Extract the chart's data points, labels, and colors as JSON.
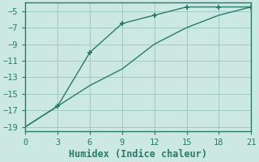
{
  "xlabel": "Humidex (Indice chaleur)",
  "bg_color": "#cbe8e3",
  "grid_color": "#a0ccc5",
  "line_color": "#2a7a6a",
  "line1_x": [
    0,
    3,
    6,
    9,
    12,
    15,
    18,
    21
  ],
  "line1_y": [
    -19.0,
    -16.5,
    -10.0,
    -6.5,
    -5.5,
    -4.5,
    -4.5,
    -4.5
  ],
  "line1_markers_x": [
    3,
    6,
    9,
    12,
    15,
    18,
    21
  ],
  "line1_markers_y": [
    -16.5,
    -10.0,
    -6.5,
    -5.5,
    -4.5,
    -4.5,
    -4.5
  ],
  "line2_x": [
    0,
    3,
    6,
    9,
    12,
    15,
    18,
    21
  ],
  "line2_y": [
    -19.0,
    -16.5,
    -14.0,
    -12.0,
    -9.0,
    -7.0,
    -5.5,
    -4.5
  ],
  "xlim": [
    0,
    21
  ],
  "ylim": [
    -19.5,
    -4.0
  ],
  "xticks": [
    0,
    3,
    6,
    9,
    12,
    15,
    18,
    21
  ],
  "yticks": [
    -19,
    -17,
    -15,
    -13,
    -11,
    -9,
    -7,
    -5
  ],
  "tick_fontsize": 7.5,
  "xlabel_fontsize": 8.5,
  "spine_color": "#2a7a6a"
}
